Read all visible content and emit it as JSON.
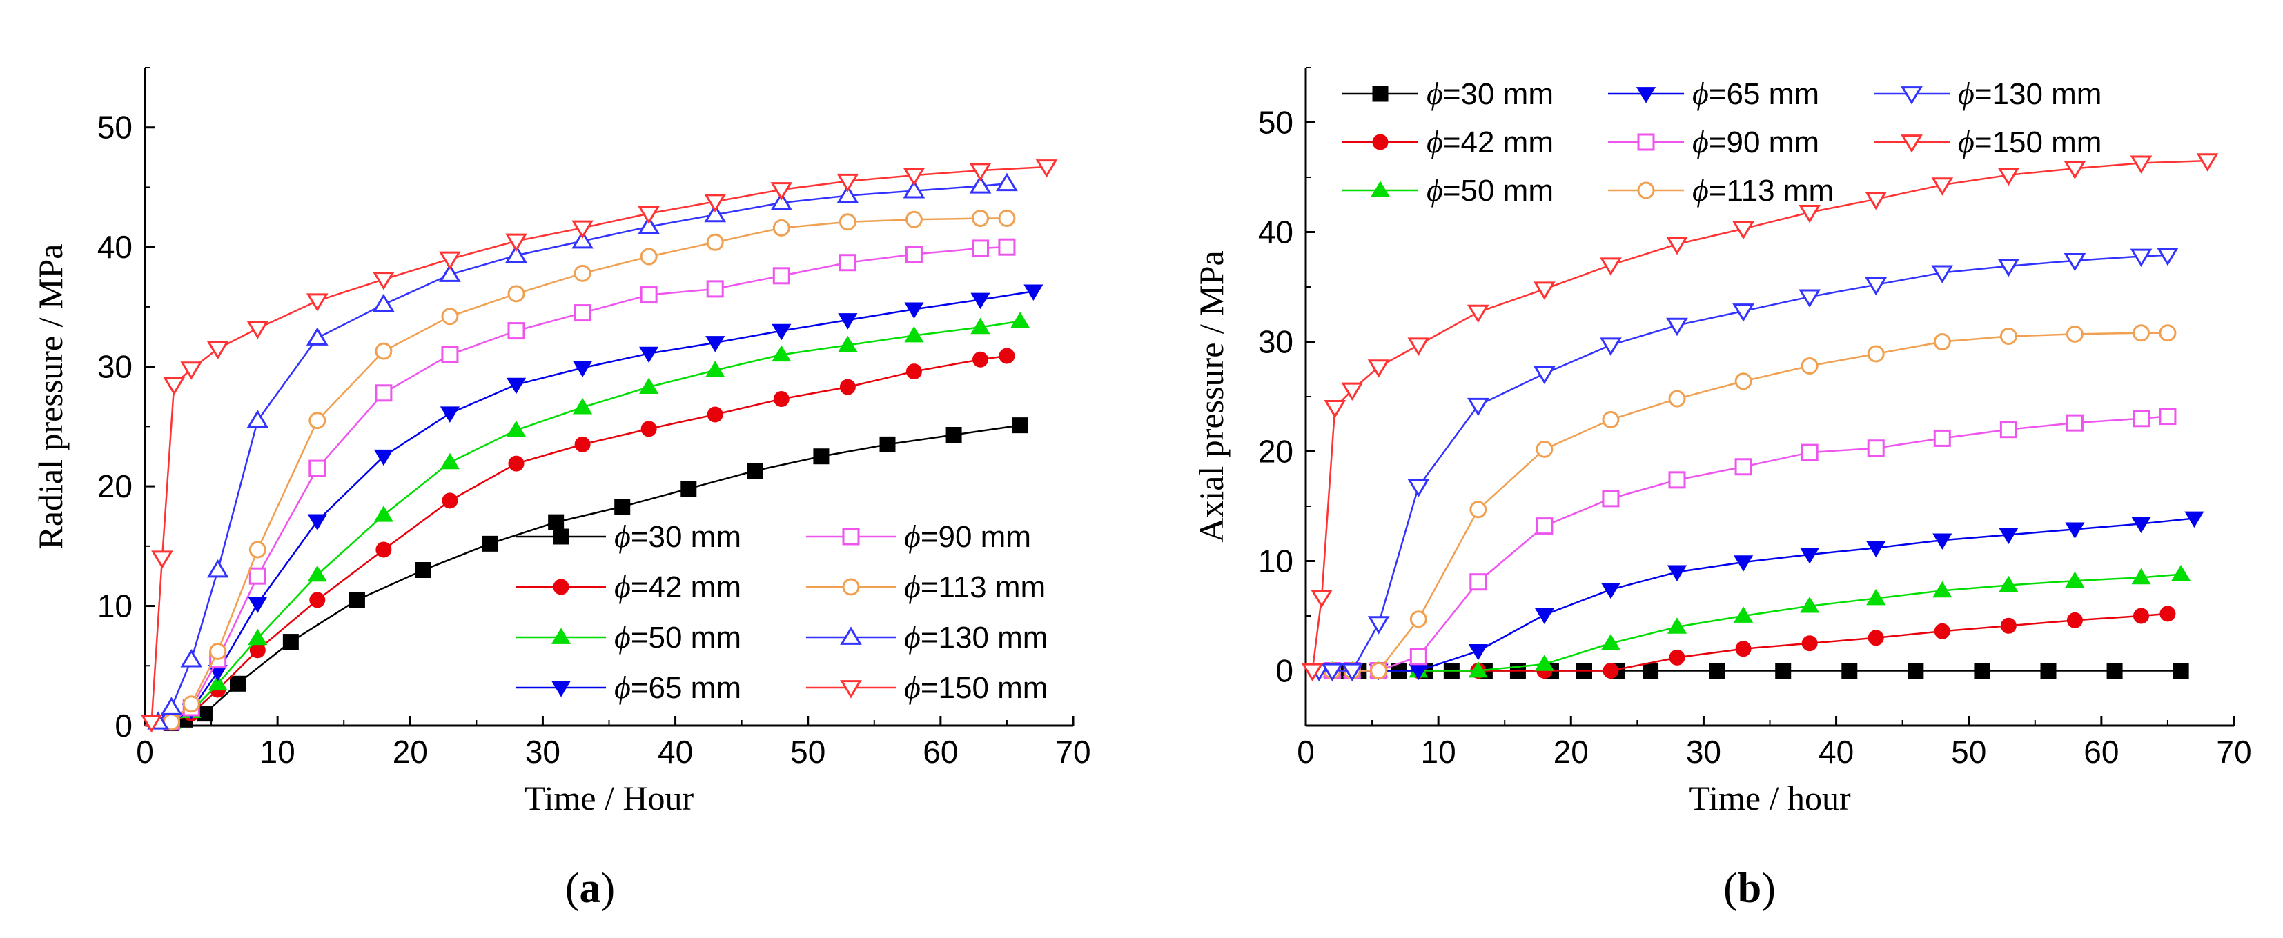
{
  "colors": {
    "s30": "#000000",
    "s42": "#e8000b",
    "s50": "#00dd00",
    "s65": "#0000ee",
    "s90": "#ee55ee",
    "s113": "#f0a050",
    "s130": "#3333ff",
    "s150": "#ff3333"
  },
  "panels": [
    {
      "open": "(",
      "letter": "a",
      "close": ")"
    },
    {
      "open": "(",
      "letter": "b",
      "close": ")"
    }
  ],
  "chart_data": [
    {
      "type": "line",
      "xlabel": "Time / Hour",
      "ylabel": "Radial pressure / MPa",
      "xlim": [
        0,
        70
      ],
      "ylim": [
        0,
        55
      ],
      "xticks": [
        0,
        10,
        20,
        30,
        40,
        50,
        60,
        70
      ],
      "yticks": [
        0,
        10,
        20,
        30,
        40,
        50
      ],
      "legend_placement": "bottom-right",
      "series": [
        {
          "name": "=30 mm",
          "color_key": "s30",
          "marker": "square-filled",
          "x": [
            0,
            2,
            3,
            4.5,
            7,
            11,
            16,
            21,
            26,
            31,
            36,
            41,
            46,
            51,
            56,
            61,
            66
          ],
          "y": [
            0,
            0.2,
            0.5,
            1,
            3.5,
            7,
            10.5,
            13,
            15.2,
            17,
            18.3,
            19.8,
            21.3,
            22.5,
            23.5,
            24.3,
            25.1
          ]
        },
        {
          "name": "=42 mm",
          "color_key": "s42",
          "marker": "circle-filled",
          "x": [
            0,
            2,
            3.5,
            5.5,
            8.5,
            13,
            18,
            23,
            28,
            33,
            38,
            43,
            48,
            53,
            58,
            63,
            65
          ],
          "y": [
            0,
            0.3,
            1,
            3,
            6.3,
            10.5,
            14.7,
            18.8,
            21.9,
            23.5,
            24.8,
            26,
            27.3,
            28.3,
            29.6,
            30.6,
            30.9
          ]
        },
        {
          "name": "=50 mm",
          "color_key": "s50",
          "marker": "triangle-up-filled",
          "x": [
            0,
            2,
            3.5,
            5.5,
            8.5,
            13,
            18,
            23,
            28,
            33,
            38,
            43,
            48,
            53,
            58,
            63,
            66
          ],
          "y": [
            0,
            0.3,
            1.2,
            3.5,
            7.3,
            12.6,
            17.6,
            22,
            24.7,
            26.6,
            28.3,
            29.7,
            31,
            31.8,
            32.6,
            33.3,
            33.8
          ]
        },
        {
          "name": "=65 mm",
          "color_key": "s65",
          "marker": "triangle-down-filled",
          "x": [
            0,
            2,
            3.5,
            5.5,
            8.5,
            13,
            18,
            23,
            28,
            33,
            38,
            43,
            48,
            53,
            58,
            63,
            67
          ],
          "y": [
            0,
            0.3,
            1.3,
            4.5,
            10.2,
            17.1,
            22.5,
            26.1,
            28.5,
            29.9,
            31.1,
            32,
            33,
            33.9,
            34.8,
            35.6,
            36.3
          ]
        },
        {
          "name": "=90 mm",
          "color_key": "s90",
          "marker": "square-open",
          "x": [
            0,
            2,
            3.5,
            5.5,
            8.5,
            13,
            18,
            23,
            28,
            33,
            38,
            43,
            48,
            53,
            58,
            63,
            65
          ],
          "y": [
            0,
            0.3,
            1.5,
            5.5,
            12.5,
            21.5,
            27.8,
            31,
            33,
            34.5,
            36,
            36.5,
            37.6,
            38.7,
            39.4,
            39.9,
            40
          ]
        },
        {
          "name": "=113 mm",
          "color_key": "s113",
          "marker": "circle-open",
          "x": [
            0,
            2,
            3.5,
            5.5,
            8.5,
            13,
            18,
            23,
            28,
            33,
            38,
            43,
            48,
            53,
            58,
            63,
            65
          ],
          "y": [
            0,
            0.3,
            1.8,
            6.2,
            14.7,
            25.5,
            31.3,
            34.2,
            36.1,
            37.8,
            39.2,
            40.4,
            41.6,
            42.1,
            42.3,
            42.4,
            42.4
          ]
        },
        {
          "name": "=130 mm",
          "color_key": "s130",
          "marker": "triangle-up-open",
          "x": [
            0,
            1,
            2,
            3.5,
            5.5,
            8.5,
            13,
            18,
            23,
            28,
            33,
            38,
            43,
            48,
            53,
            58,
            63,
            65
          ],
          "y": [
            0,
            0.3,
            1.5,
            5.5,
            13,
            25.5,
            32.4,
            35.2,
            37.7,
            39.3,
            40.5,
            41.7,
            42.7,
            43.7,
            44.3,
            44.7,
            45.1,
            45.3
          ]
        },
        {
          "name": "=150 mm",
          "color_key": "s150",
          "marker": "triangle-down-open",
          "x": [
            0,
            0.5,
            1.3,
            2.2,
            3.5,
            5.5,
            8.5,
            13,
            18,
            23,
            28,
            33,
            38,
            43,
            48,
            53,
            58,
            63,
            68
          ],
          "y": [
            0,
            0.3,
            14,
            28.5,
            29.8,
            31.5,
            33.2,
            35.5,
            37.3,
            39,
            40.5,
            41.6,
            42.8,
            43.8,
            44.8,
            45.5,
            46,
            46.4,
            46.7
          ]
        }
      ]
    },
    {
      "type": "line",
      "xlabel": "Time / hour",
      "ylabel": "Axial pressure / MPa",
      "xlim": [
        0,
        70
      ],
      "ylim": [
        -5,
        55
      ],
      "xticks": [
        0,
        10,
        20,
        30,
        40,
        50,
        60,
        70
      ],
      "yticks": [
        0,
        10,
        20,
        30,
        40,
        50
      ],
      "legend_placement": "top-left",
      "series": [
        {
          "name": "=30 mm",
          "color_key": "s30",
          "marker": "square-filled",
          "x": [
            0,
            2,
            3,
            4,
            5.5,
            7,
            9,
            11,
            13.5,
            16,
            18.5,
            21,
            23.5,
            26,
            31,
            36,
            41,
            46,
            51,
            56,
            61,
            66
          ],
          "y": [
            0,
            0,
            0,
            0,
            0,
            0,
            0,
            0,
            0,
            0,
            0,
            0,
            0,
            0,
            0,
            0,
            0,
            0,
            0,
            0,
            0,
            0
          ]
        },
        {
          "name": "=42 mm",
          "color_key": "s42",
          "marker": "circle-filled",
          "x": [
            0,
            2,
            3.5,
            5.5,
            8.5,
            13,
            18,
            23,
            28,
            33,
            38,
            43,
            48,
            53,
            58,
            63,
            65
          ],
          "y": [
            0,
            0,
            0,
            0,
            0,
            0,
            0,
            0,
            1.2,
            2,
            2.5,
            3,
            3.6,
            4.1,
            4.6,
            5,
            5.2
          ]
        },
        {
          "name": "=50 mm",
          "color_key": "s50",
          "marker": "triangle-up-filled",
          "x": [
            0,
            2,
            3.5,
            5.5,
            8.5,
            13,
            18,
            23,
            28,
            33,
            38,
            43,
            48,
            53,
            58,
            63,
            66
          ],
          "y": [
            0,
            0,
            0,
            0,
            0,
            0,
            0.6,
            2.5,
            4,
            5,
            5.9,
            6.6,
            7.3,
            7.8,
            8.2,
            8.5,
            8.8
          ]
        },
        {
          "name": "=65 mm",
          "color_key": "s65",
          "marker": "triangle-down-filled",
          "x": [
            0,
            2,
            3.5,
            5.5,
            8.5,
            13,
            18,
            23,
            28,
            33,
            38,
            43,
            48,
            53,
            58,
            63,
            67
          ],
          "y": [
            0,
            0,
            0,
            0,
            0,
            1.8,
            5.1,
            7.4,
            9,
            9.9,
            10.6,
            11.2,
            11.9,
            12.4,
            12.9,
            13.4,
            13.9
          ]
        },
        {
          "name": "=90 mm",
          "color_key": "s90",
          "marker": "square-open",
          "x": [
            0,
            2,
            3.5,
            5.5,
            8.5,
            13,
            18,
            23,
            28,
            33,
            38,
            43,
            48,
            53,
            58,
            63,
            65
          ],
          "y": [
            0,
            0,
            0,
            0,
            1.3,
            8.1,
            13.2,
            15.7,
            17.4,
            18.6,
            19.9,
            20.3,
            21.2,
            22,
            22.6,
            23,
            23.2
          ]
        },
        {
          "name": "=113 mm",
          "color_key": "s113",
          "marker": "circle-open",
          "x": [
            0,
            2,
            3.5,
            5.5,
            8.5,
            13,
            18,
            23,
            28,
            33,
            38,
            43,
            48,
            53,
            58,
            63,
            65
          ],
          "y": [
            0,
            0,
            0,
            0,
            4.7,
            14.7,
            20.2,
            22.9,
            24.8,
            26.4,
            27.8,
            28.9,
            30,
            30.5,
            30.7,
            30.8,
            30.8
          ]
        },
        {
          "name": "=130 mm",
          "color_key": "s130",
          "marker": "triangle-down-open",
          "x": [
            0,
            1,
            2,
            3.5,
            5.5,
            8.5,
            13,
            18,
            23,
            28,
            33,
            38,
            43,
            48,
            53,
            58,
            63,
            65
          ],
          "y": [
            0,
            0,
            0,
            0,
            4.3,
            16.8,
            24.2,
            27.1,
            29.7,
            31.5,
            32.8,
            34.1,
            35.2,
            36.3,
            36.9,
            37.4,
            37.8,
            37.9
          ]
        },
        {
          "name": "=150 mm",
          "color_key": "s150",
          "marker": "triangle-down-open",
          "x": [
            0,
            0.5,
            1.2,
            2.2,
            3.5,
            5.5,
            8.5,
            13,
            18,
            23,
            28,
            33,
            38,
            43,
            48,
            53,
            58,
            63,
            68
          ],
          "y": [
            0,
            0,
            6.7,
            24,
            25.6,
            27.7,
            29.7,
            32.7,
            34.8,
            37,
            38.9,
            40.3,
            41.8,
            43,
            44.3,
            45.2,
            45.8,
            46.3,
            46.5
          ]
        }
      ]
    }
  ]
}
